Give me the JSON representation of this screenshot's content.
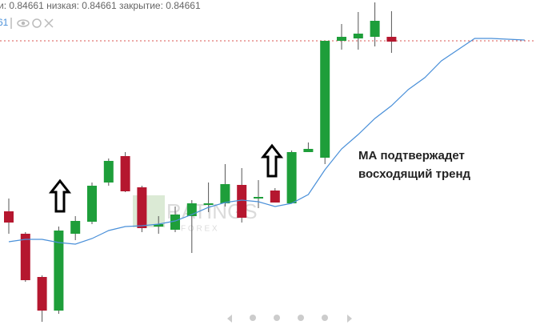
{
  "chart_data": {
    "type": "candlestick",
    "header": "и: 0.84661 низкая: 0.84661 закрытие: 0.84661",
    "legend_value": "61",
    "annotation": [
      "МА подтвержадет",
      "восходящий тренд"
    ],
    "watermark": "RATINGS",
    "watermark_sub": "F O R E X",
    "categories": [
      null,
      null,
      null,
      null,
      null,
      null,
      null,
      null,
      null,
      null,
      null,
      null,
      null,
      null,
      null,
      null,
      null,
      null,
      null,
      null,
      null,
      null,
      null,
      null,
      null,
      null,
      null,
      null,
      null,
      null,
      null,
      null
    ],
    "open": [
      0.84448,
      0.8442,
      0.84366,
      0.84324,
      0.8442,
      0.84435,
      0.84484,
      0.84517,
      0.84478,
      0.84429,
      0.84425,
      0.84442,
      0.84456,
      0.84458,
      0.84481,
      0.84464,
      0.84474,
      0.84458,
      0.84522,
      0.84515,
      0.84661,
      0.84664,
      0.84666,
      0.84666,
      null,
      null,
      null,
      null,
      null,
      null,
      null,
      null
    ],
    "high": [
      0.84464,
      0.84422,
      0.84368,
      0.84429,
      0.84442,
      0.84484,
      0.84514,
      0.84522,
      0.8448,
      0.84442,
      0.84454,
      0.84462,
      0.84484,
      0.84507,
      0.84502,
      0.84487,
      0.84477,
      0.84524,
      0.84534,
      0.84661,
      0.84682,
      0.84697,
      0.84709,
      0.84698,
      null,
      null,
      null,
      null,
      null,
      null,
      null,
      null
    ],
    "low": [
      0.8442,
      0.8436,
      0.8431,
      0.8432,
      0.84412,
      0.84432,
      0.8448,
      0.84472,
      0.84422,
      0.8442,
      0.84422,
      0.84396,
      0.84447,
      0.84454,
      0.84434,
      0.84452,
      0.84459,
      0.84458,
      0.84522,
      0.84507,
      0.8465,
      0.8465,
      0.84654,
      0.84646,
      null,
      null,
      null,
      null,
      null,
      null,
      null,
      null
    ],
    "close": [
      0.84434,
      0.84362,
      0.84324,
      0.84424,
      0.84436,
      0.8448,
      0.84511,
      0.84473,
      0.84427,
      0.84432,
      0.84444,
      0.84458,
      0.84458,
      0.84482,
      0.8444,
      0.84466,
      0.84459,
      0.84522,
      0.84526,
      0.84661,
      0.84666,
      0.8467,
      0.84686,
      0.8466,
      null,
      null,
      null,
      null,
      null,
      null,
      null,
      null
    ],
    "up_color": "#1e9e3a",
    "down_color": "#b5172f",
    "series": [
      {
        "name": "MA",
        "color": "#4a90d9",
        "values": [
          0.8441,
          0.84413,
          0.84413,
          0.84409,
          0.84407,
          0.84414,
          0.84424,
          0.84429,
          0.8443,
          0.84432,
          0.84436,
          0.84444,
          0.84453,
          0.84459,
          0.84462,
          0.8446,
          0.84454,
          0.84458,
          0.84469,
          0.845,
          0.84526,
          0.84544,
          0.84564,
          0.8458,
          0.846,
          0.84615,
          0.84636,
          0.8465,
          0.84664,
          0.84664,
          0.84663,
          0.84662
        ]
      }
    ],
    "price_line": 0.84661,
    "price_line_color": "#d9534f",
    "ylim": [
      0.84301,
      0.84712
    ]
  }
}
